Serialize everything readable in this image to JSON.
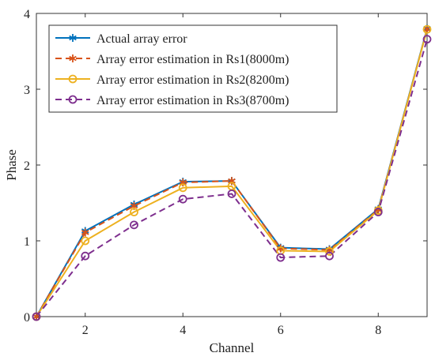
{
  "chart_data": {
    "type": "line",
    "title": "",
    "xlabel": "Channel",
    "ylabel": "Phase",
    "x": [
      1,
      2,
      3,
      4,
      5,
      6,
      7,
      8,
      9
    ],
    "xlim": [
      1,
      9
    ],
    "ylim": [
      0,
      4
    ],
    "xticks": [
      2,
      4,
      6,
      8
    ],
    "yticks": [
      0,
      1,
      2,
      3,
      4
    ],
    "grid": false,
    "legend_position": "top-left",
    "series": [
      {
        "name": "Actual array error",
        "values": [
          0.0,
          1.13,
          1.48,
          1.78,
          1.79,
          0.91,
          0.89,
          1.42,
          3.8
        ],
        "color": "#0072BD",
        "dash": "solid",
        "marker": "asterisk"
      },
      {
        "name": "Array error estimation in Rs1(8000m)",
        "values": [
          0.0,
          1.11,
          1.46,
          1.77,
          1.79,
          0.9,
          0.88,
          1.41,
          3.79
        ],
        "color": "#D95319",
        "dash": "dashed",
        "marker": "asterisk"
      },
      {
        "name": "Array error estimation in Rs2(8200m)",
        "values": [
          0.0,
          1.0,
          1.38,
          1.7,
          1.72,
          0.87,
          0.86,
          1.4,
          3.79
        ],
        "color": "#EDB120",
        "dash": "solid",
        "marker": "circle"
      },
      {
        "name": "Array error estimation in Rs3(8700m)",
        "values": [
          0.0,
          0.8,
          1.21,
          1.55,
          1.62,
          0.78,
          0.8,
          1.38,
          3.66
        ],
        "color": "#7E2F8E",
        "dash": "dashed",
        "marker": "circle"
      }
    ]
  }
}
